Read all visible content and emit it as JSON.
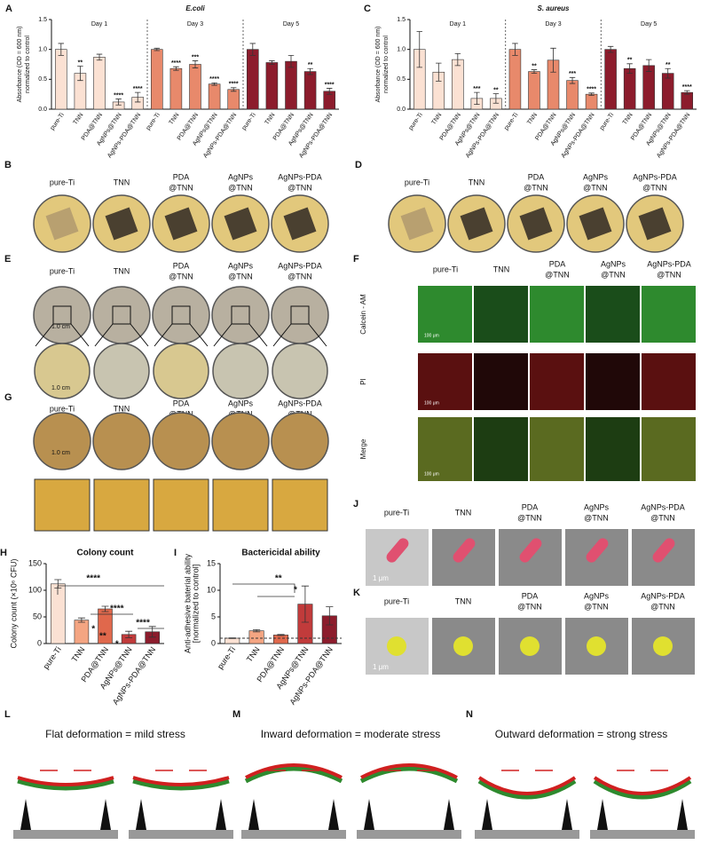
{
  "chart_data": [
    {
      "type": "bar",
      "panel": "A",
      "title": "E.coli",
      "ylabel": [
        "Absorbance (OD = 600 nm)",
        "normalized to control"
      ],
      "categories": [
        "pure-Ti",
        "TNN",
        "PDA@TNN",
        "AgNPs@TNN",
        "AgNPs-PDA@TNN"
      ],
      "ylim": [
        0,
        1.5
      ],
      "yticks": [
        {
          "value": 0,
          "label": "0.0"
        },
        {
          "value": 0.5,
          "label": "0.5"
        },
        {
          "value": 1,
          "label": "1.0"
        },
        {
          "value": 1.5,
          "label": "1.5"
        }
      ],
      "series": [
        {
          "name": "Day 1",
          "color": "#fbe1d3",
          "values": [
            1.0,
            0.6,
            0.87,
            0.12,
            0.2
          ],
          "errors": [
            0.1,
            0.12,
            0.05,
            0.05,
            0.08
          ],
          "annotations": [
            null,
            "**",
            null,
            "****",
            "****"
          ]
        },
        {
          "name": "Day 3",
          "color": "#e8896b",
          "values": [
            1.0,
            0.68,
            0.75,
            0.42,
            0.33
          ],
          "errors": [
            0.02,
            0.03,
            0.06,
            0.02,
            0.03
          ],
          "annotations": [
            null,
            "****",
            "***",
            "****",
            "****"
          ]
        },
        {
          "name": "Day 5",
          "color": "#8c1c2c",
          "values": [
            1.0,
            0.78,
            0.8,
            0.63,
            0.3
          ],
          "errors": [
            0.1,
            0.03,
            0.1,
            0.05,
            0.05
          ],
          "annotations": [
            null,
            null,
            null,
            "**",
            "****"
          ]
        }
      ]
    },
    {
      "type": "bar",
      "panel": "C",
      "title": "S. aureus",
      "ylabel": [
        "Absorbance (OD = 600 nm)",
        "normalized to control"
      ],
      "categories": [
        "pure-Ti",
        "TNN",
        "PDA@TNN",
        "AgNPs@TNN",
        "AgNPs-PDA@TNN"
      ],
      "ylim": [
        0,
        1.5
      ],
      "yticks": [
        {
          "value": 0,
          "label": "0.0"
        },
        {
          "value": 0.5,
          "label": "0.5"
        },
        {
          "value": 1,
          "label": "1.0"
        },
        {
          "value": 1.5,
          "label": "1.5"
        }
      ],
      "series": [
        {
          "name": "Day 1",
          "color": "#fbe1d3",
          "values": [
            1.0,
            0.62,
            0.83,
            0.18,
            0.18
          ],
          "errors": [
            0.3,
            0.15,
            0.1,
            0.1,
            0.08
          ],
          "annotations": [
            null,
            null,
            null,
            "***",
            "**"
          ]
        },
        {
          "name": "Day 3",
          "color": "#e8896b",
          "values": [
            1.0,
            0.63,
            0.82,
            0.48,
            0.25
          ],
          "errors": [
            0.1,
            0.03,
            0.2,
            0.05,
            0.02
          ],
          "annotations": [
            null,
            "**",
            null,
            "***",
            "****"
          ]
        },
        {
          "name": "Day 5",
          "color": "#8c1c2c",
          "values": [
            1.0,
            0.68,
            0.73,
            0.6,
            0.28
          ],
          "errors": [
            0.05,
            0.08,
            0.1,
            0.08,
            0.03
          ],
          "annotations": [
            null,
            "**",
            null,
            "**",
            "****"
          ]
        }
      ]
    },
    {
      "type": "bar",
      "panel": "H",
      "title": "Colony count",
      "ylabel": [
        "Colony count (×10⁶ CFU)"
      ],
      "categories": [
        "pure-Ti",
        "TNN",
        "PDA@TNN",
        "AgNPs@TNN",
        "AgNPs-PDA@TNN"
      ],
      "values": [
        112,
        44,
        65,
        17,
        22
      ],
      "errors": [
        8,
        4,
        5,
        6,
        10
      ],
      "colors": [
        "#fbe1d3",
        "#f4a582",
        "#e0684c",
        "#c13b3b",
        "#8c1c2c"
      ],
      "ylim": [
        0,
        150
      ],
      "yticks": [
        0,
        50,
        100,
        150
      ],
      "annotations": [
        "****",
        "****",
        "*",
        "**",
        "*",
        "****"
      ]
    },
    {
      "type": "bar",
      "panel": "I",
      "title": "Bactericidal ability",
      "ylabel": [
        "Anti-adhesive baterial ability",
        "[normalized to control]"
      ],
      "categories": [
        "pure-Ti",
        "TNN",
        "PDA@TNN",
        "AgNPs@TNN",
        "AgNPs-PDA@TNN"
      ],
      "values": [
        1.0,
        2.4,
        1.6,
        7.4,
        5.2
      ],
      "errors": [
        0.05,
        0.2,
        0.1,
        3.4,
        1.7
      ],
      "colors": [
        "#fbe1d3",
        "#f4a582",
        "#e0684c",
        "#c13b3b",
        "#8c1c2c"
      ],
      "ylim": [
        0,
        15
      ],
      "yticks": [
        0,
        5,
        10,
        15
      ],
      "hline": 1,
      "annotations": [
        "**",
        "*"
      ]
    }
  ],
  "photo_labels": [
    [
      "pure-Ti"
    ],
    [
      "TNN"
    ],
    [
      "PDA",
      "@TNN"
    ],
    [
      "AgNPs",
      "@TNN"
    ],
    [
      "AgNPs-PDA",
      "@TNN"
    ]
  ],
  "panel_letters": [
    "B",
    "D",
    "E",
    "F",
    "G",
    "J",
    "K"
  ],
  "fluorescence_rows": [
    "Calcein - AM",
    "PI",
    "Merge"
  ],
  "scale_bars": {
    "plate": "1.0 cm",
    "fluorescence": "100 μm",
    "sem": "1 μm"
  },
  "deformation": [
    {
      "panel": "L",
      "title": "Flat deformation = mild stress"
    },
    {
      "panel": "M",
      "title": "Inward deformation = moderate stress"
    },
    {
      "panel": "N",
      "title": "Outward deformation = strong stress"
    }
  ]
}
